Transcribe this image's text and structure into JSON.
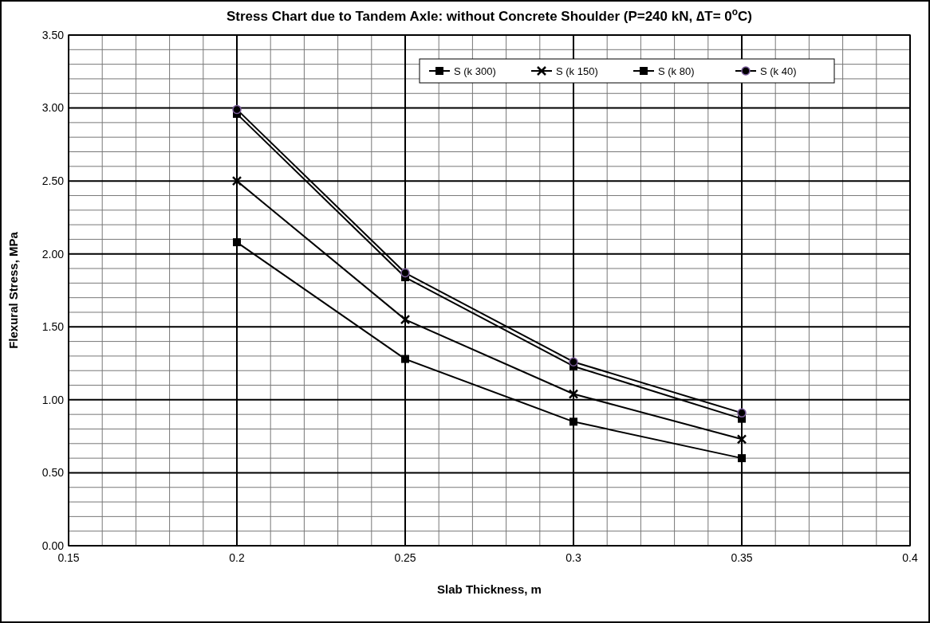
{
  "chart_data": {
    "type": "line",
    "title": "Stress Chart due to Tandem Axle: without Concrete Shoulder (P=240 kN, ∆T= 0$^{o}$C)",
    "xlabel": "Slab Thickness, m",
    "ylabel": "Flexural Stress, MPa",
    "x": [
      0.2,
      0.25,
      0.3,
      0.35
    ],
    "series": [
      {
        "name": "S (k 300)",
        "color": "#000000",
        "marker": "square",
        "values": [
          2.08,
          1.28,
          0.85,
          0.6
        ]
      },
      {
        "name": "S (k 150)",
        "color": "#000000",
        "marker": "cross",
        "values": [
          2.5,
          1.55,
          1.04,
          0.73
        ]
      },
      {
        "name": "S (k 80)",
        "color": "#000000",
        "marker": "square",
        "values": [
          2.96,
          1.84,
          1.23,
          0.87
        ]
      },
      {
        "name": "S (k 40)",
        "color": "#000000",
        "marker": "circle",
        "values": [
          2.99,
          1.87,
          1.26,
          0.91
        ]
      }
    ],
    "xlim": [
      0.15,
      0.4
    ],
    "xticks": [
      0.15,
      0.2,
      0.25,
      0.3,
      0.35,
      0.4
    ],
    "ylim": [
      0,
      3.5
    ],
    "yticks": [
      {
        "value": 0,
        "label": "0.00"
      },
      {
        "value": 0.5,
        "label": "0.50"
      },
      {
        "value": 1,
        "label": "1.00"
      },
      {
        "value": 1.5,
        "label": "1.50"
      },
      {
        "value": 2,
        "label": "2.00"
      },
      {
        "value": 2.5,
        "label": "2.50"
      },
      {
        "value": 3,
        "label": "3.00"
      },
      {
        "value": 3.5,
        "label": "3.50"
      }
    ],
    "grid": true,
    "legend": "top right",
    "line_style": "solid"
  }
}
